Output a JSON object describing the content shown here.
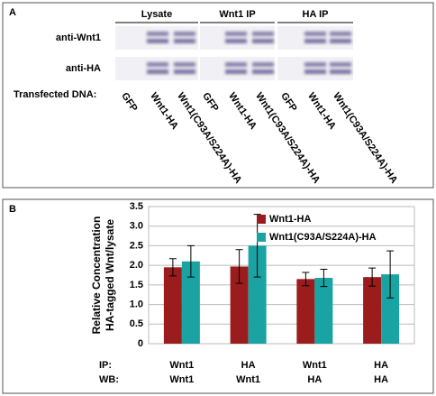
{
  "panel_a": {
    "label": "A",
    "groups": [
      "Lysate",
      "Wnt1 IP",
      "HA IP"
    ],
    "rows": [
      "anti-Wnt1",
      "anti-HA"
    ],
    "lane_title": "Transfected DNA:",
    "lanes": [
      "GFP",
      "Wnt1-HA",
      "Wnt1(C93A/S224A)-HA",
      "GFP",
      "Wnt1-HA",
      "Wnt1(C93A/S224A)-HA",
      "GFP",
      "Wnt1-HA",
      "Wnt1(C93A/S224A)-HA"
    ]
  },
  "chart_data": {
    "type": "bar",
    "panel_label": "B",
    "y_label": [
      "Relative Concentration",
      "HA-tagged Wnt/lysate"
    ],
    "category_titles": [
      "IP:",
      "WB:"
    ],
    "categories": [
      "Wnt1",
      "HA",
      "Wnt1",
      "HA"
    ],
    "categories2": [
      "Wnt1",
      "Wnt1",
      "HA",
      "HA"
    ],
    "series": [
      {
        "name": "Wnt1-HA",
        "color": "#9b1c1c",
        "values": [
          1.95,
          1.97,
          1.65,
          1.7
        ],
        "errors": [
          0.22,
          0.43,
          0.17,
          0.23
        ]
      },
      {
        "name": "Wnt1(C93A/S224A)-HA",
        "color": "#1aa3a3",
        "values": [
          2.1,
          2.5,
          1.68,
          1.77
        ],
        "errors": [
          0.4,
          0.8,
          0.22,
          0.6
        ]
      }
    ],
    "ylim": [
      0,
      3.5
    ],
    "yticks": [
      0,
      0.5,
      {
        "value": 1,
        "label": "1.0"
      },
      1.5,
      {
        "value": 2,
        "label": "2.0"
      },
      2.5,
      {
        "value": 3,
        "label": "3.0"
      },
      3.5
    ],
    "grid": true,
    "legend": "upper right"
  }
}
